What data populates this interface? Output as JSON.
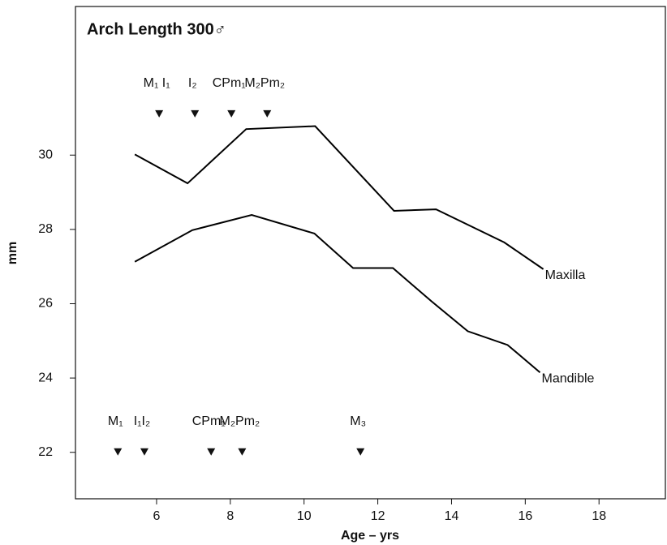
{
  "chart_data": {
    "type": "line",
    "title": "Arch Length 300♂",
    "xlabel": "Age – yrs",
    "ylabel": "mm",
    "xlim": [
      3.8,
      19.8
    ],
    "xticks": [
      6,
      8,
      10,
      12,
      14,
      16,
      18
    ],
    "ylim": [
      20.75,
      34
    ],
    "yticks": [
      22,
      24,
      26,
      28,
      30
    ],
    "series": [
      {
        "name": "Maxilla",
        "color": "#000000",
        "x": [
          5.41,
          6.84,
          8.43,
          10.3,
          12.44,
          13.58,
          15.43,
          16.49
        ],
        "values": [
          30.02,
          29.24,
          30.7,
          30.78,
          28.5,
          28.54,
          27.65,
          26.93
        ]
      },
      {
        "name": "Mandible",
        "color": "#000000",
        "x": [
          5.41,
          6.97,
          8.58,
          10.28,
          11.33,
          12.41,
          13.45,
          14.44,
          15.52,
          16.4
        ],
        "values": [
          27.13,
          27.98,
          28.39,
          27.89,
          26.96,
          26.96,
          26.07,
          25.26,
          24.89,
          24.15
        ]
      }
    ],
    "markers": [
      {
        "y": 31.1,
        "events": [
          {
            "label": "M₁ I₁",
            "x": 6.07
          },
          {
            "label": "I₂",
            "x": 7.04
          },
          {
            "label": "CPm₁",
            "x": 8.03
          },
          {
            "label": "M₂Pm₂",
            "x": 9.0
          }
        ]
      },
      {
        "y": 22,
        "events": [
          {
            "label": "M₁",
            "x": 4.95
          },
          {
            "label": "I₁I₂",
            "x": 5.67
          },
          {
            "label": "CPm₁",
            "x": 7.48
          },
          {
            "label": "M₂Pm₂",
            "x": 8.32
          },
          {
            "label": "M₃",
            "x": 11.53
          }
        ]
      }
    ]
  }
}
